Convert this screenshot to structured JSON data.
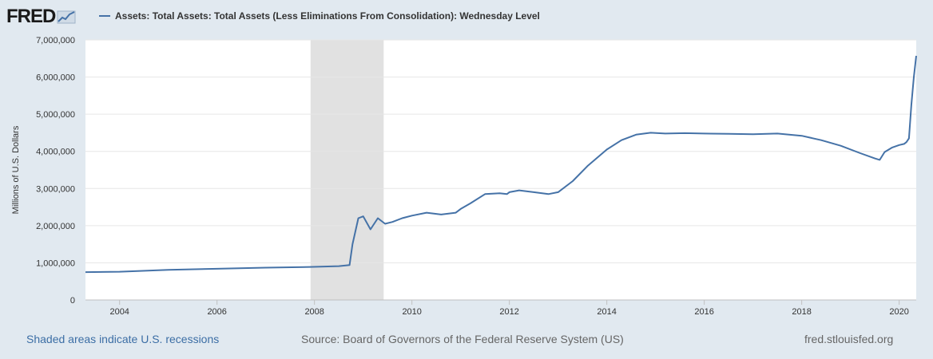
{
  "brand": {
    "name": "FRED",
    "logo_icon": "line-chart-icon"
  },
  "footer": {
    "recession_note": "Shaded areas indicate U.S. recessions",
    "source": "Source: Board of Governors of the Federal Reserve System (US)",
    "site": "fred.stlouisfed.org"
  },
  "colors": {
    "series": "#4572a7",
    "background": "#e1e9f0",
    "plot": "#ffffff",
    "recession": "#e1e1e1",
    "link": "#3c6ea5"
  },
  "chart_data": {
    "type": "line",
    "title": "",
    "xlabel": "",
    "ylabel": "Millions of U.S. Dollars",
    "xlim": [
      2003.3,
      2020.35
    ],
    "ylim": [
      0,
      7000000
    ],
    "yticks": [
      0,
      1000000,
      2000000,
      3000000,
      4000000,
      5000000,
      6000000,
      7000000
    ],
    "ytick_labels": [
      "0",
      "1,000,000",
      "2,000,000",
      "3,000,000",
      "4,000,000",
      "5,000,000",
      "6,000,000",
      "7,000,000"
    ],
    "xticks": [
      2004,
      2006,
      2008,
      2010,
      2012,
      2014,
      2016,
      2018,
      2020
    ],
    "xtick_labels": [
      "2004",
      "2006",
      "2008",
      "2010",
      "2012",
      "2014",
      "2016",
      "2018",
      "2020"
    ],
    "grid": true,
    "legend_position": "top-left",
    "recessions": [
      {
        "start": 2007.92,
        "end": 2009.42
      }
    ],
    "series": [
      {
        "name": "Assets: Total Assets: Total Assets (Less Eliminations From Consolidation): Wednesday Level",
        "x": [
          2003.3,
          2004,
          2005,
          2006,
          2007,
          2007.9,
          2008.5,
          2008.72,
          2008.78,
          2008.9,
          2009.0,
          2009.15,
          2009.3,
          2009.45,
          2009.6,
          2009.8,
          2010.0,
          2010.3,
          2010.6,
          2010.9,
          2011.0,
          2011.2,
          2011.5,
          2011.8,
          2011.95,
          2012.0,
          2012.2,
          2012.5,
          2012.8,
          2013.0,
          2013.3,
          2013.6,
          2014.0,
          2014.3,
          2014.6,
          2014.9,
          2015.2,
          2015.6,
          2016.0,
          2016.5,
          2017.0,
          2017.5,
          2018.0,
          2018.4,
          2018.8,
          2019.2,
          2019.5,
          2019.6,
          2019.7,
          2019.85,
          2020.0,
          2020.1,
          2020.15,
          2020.2,
          2020.25,
          2020.3,
          2020.35
        ],
        "y": [
          750000,
          760000,
          810000,
          840000,
          870000,
          890000,
          910000,
          940000,
          1500000,
          2200000,
          2250000,
          1900000,
          2200000,
          2050000,
          2100000,
          2200000,
          2270000,
          2350000,
          2300000,
          2350000,
          2450000,
          2600000,
          2850000,
          2870000,
          2850000,
          2900000,
          2950000,
          2900000,
          2850000,
          2900000,
          3200000,
          3600000,
          4050000,
          4300000,
          4450000,
          4500000,
          4480000,
          4490000,
          4480000,
          4470000,
          4460000,
          4480000,
          4420000,
          4300000,
          4150000,
          3950000,
          3810000,
          3770000,
          3980000,
          4100000,
          4170000,
          4200000,
          4250000,
          4350000,
          5250000,
          6000000,
          6570000
        ]
      }
    ]
  }
}
